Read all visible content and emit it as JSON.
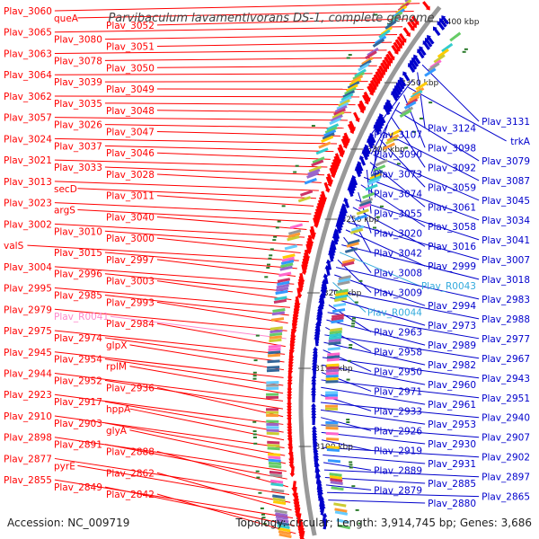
{
  "title": "Parvibaculum lavamentivorans DS-1, complete genome",
  "footer": {
    "accession": "Accession: NC_009719",
    "summary": "Topology: circular; Length: 3,914,745 bp; Genes: 3,686"
  },
  "colors": {
    "forward": "#ff0000",
    "reverse": "#0000cc",
    "rna_forward": "#ff88cc",
    "rna_reverse": "#33aadd",
    "backbone": "#999999",
    "tick": "#2a7a2a"
  },
  "ticks": [
    "3400 kbp",
    "3350 kbp",
    "3300 kbp",
    "3250 kbp",
    "3200 kbp",
    "3150 kbp",
    "3100 kbp"
  ],
  "left_labels": [
    "Plav_3060",
    "queA",
    "Plav_3052",
    "Plav_3065",
    "Plav_3080",
    "Plav_3051",
    "Plav_3063",
    "Plav_3078",
    "Plav_3050",
    "Plav_3064",
    "Plav_3039",
    "Plav_3049",
    "Plav_3062",
    "Plav_3035",
    "Plav_3048",
    "Plav_3057",
    "Plav_3026",
    "Plav_3047",
    "Plav_3024",
    "Plav_3037",
    "Plav_3046",
    "Plav_3021",
    "Plav_3033",
    "Plav_3028",
    "Plav_3013",
    "secD",
    "Plav_3011",
    "Plav_3023",
    "argS",
    "Plav_3040",
    "Plav_3002",
    "Plav_3010",
    "Plav_3000",
    "valS",
    "Plav_3015",
    "Plav_2997",
    "Plav_3004",
    "Plav_2996",
    "Plav_3003",
    "Plav_2995",
    "Plav_2985",
    "Plav_2993",
    "Plav_2979",
    "Plav_R0041",
    "Plav_2984",
    "Plav_2975",
    "Plav_2974",
    "glpX",
    "Plav_2945",
    "Plav_2954",
    "rplM",
    "Plav_2944",
    "Plav_2952",
    "Plav_2936",
    "Plav_2923",
    "Plav_2917",
    "hppA",
    "Plav_2910",
    "Plav_2903",
    "glyA",
    "Plav_2898",
    "Plav_2891",
    "Plav_2888",
    "Plav_2877",
    "pyrE",
    "Plav_2862",
    "Plav_2855",
    "Plav_2849",
    "Plav_2842"
  ],
  "right_labels": [
    "Plav_3131",
    "Plav_3124",
    "Plav_3107",
    "trkA",
    "Plav_3098",
    "Plav_3090",
    "Plav_3079",
    "Plav_3092",
    "Plav_3073",
    "Plav_3087",
    "Plav_3059",
    "Plav_3074",
    "Plav_3045",
    "Plav_3061",
    "Plav_3055",
    "Plav_3034",
    "Plav_3058",
    "Plav_3020",
    "Plav_3041",
    "Plav_3016",
    "Plav_3042",
    "Plav_3007",
    "Plav_2999",
    "Plav_3008",
    "Plav_3018",
    "Plav_R0043",
    "Plav_3009",
    "Plav_2983",
    "Plav_2994",
    "Plav_R0044",
    "Plav_2988",
    "Plav_2973",
    "Plav_2963",
    "Plav_2977",
    "Plav_2989",
    "Plav_2958",
    "Plav_2967",
    "Plav_2982",
    "Plav_2950",
    "Plav_2943",
    "Plav_2960",
    "Plav_2971",
    "Plav_2951",
    "Plav_2961",
    "Plav_2933",
    "Plav_2940",
    "Plav_2953",
    "Plav_2926",
    "Plav_2907",
    "Plav_2930",
    "Plav_2919",
    "Plav_2902",
    "Plav_2931",
    "Plav_2889",
    "Plav_2897",
    "Plav_2885",
    "Plav_2879",
    "Plav_2865",
    "Plav_2880"
  ]
}
